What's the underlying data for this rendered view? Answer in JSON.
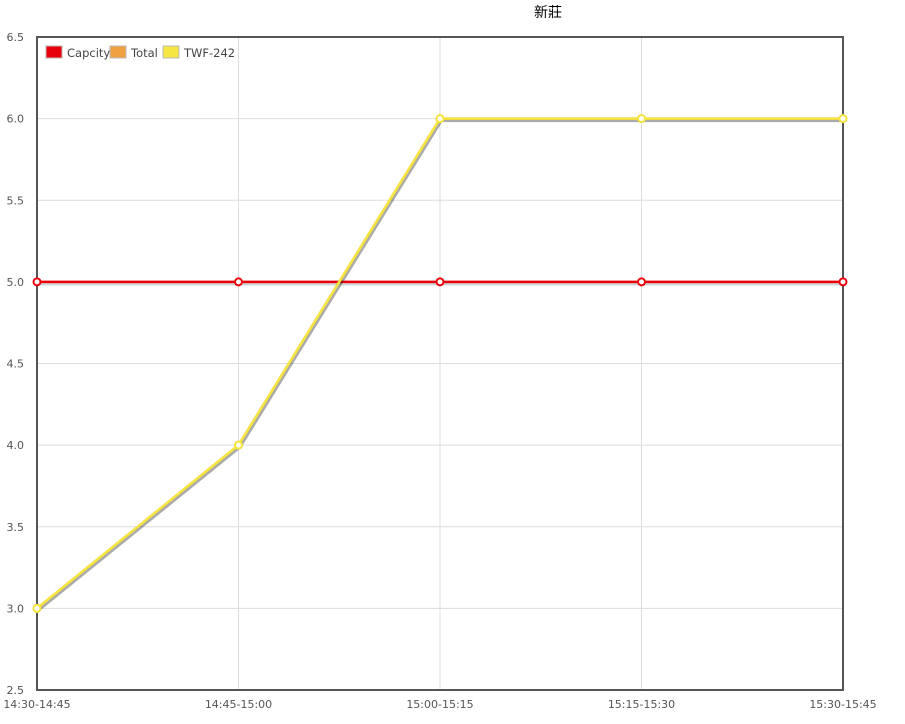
{
  "chart_data": {
    "type": "line",
    "title": "新莊",
    "categories": [
      "14:30-14:45",
      "14:45-15:00",
      "15:00-15:15",
      "15:15-15:30",
      "15:30-15:45"
    ],
    "ylim": [
      2.5,
      6.5
    ],
    "yticks": [
      "2.5",
      "3.0",
      "3.5",
      "4.0",
      "4.5",
      "5.0",
      "5.5",
      "6.0",
      "6.5"
    ],
    "grid": true,
    "legend_position": "top-left",
    "series": [
      {
        "name": "Capcity",
        "color": "#e8000b",
        "values": [
          5,
          5,
          5,
          5,
          5
        ]
      },
      {
        "name": "Total",
        "color": "#f0a040",
        "values": [
          3,
          4,
          6,
          6,
          6
        ]
      },
      {
        "name": "TWF-242",
        "color": "#f5e642",
        "values": [
          3,
          4,
          6,
          6,
          6
        ]
      }
    ]
  }
}
